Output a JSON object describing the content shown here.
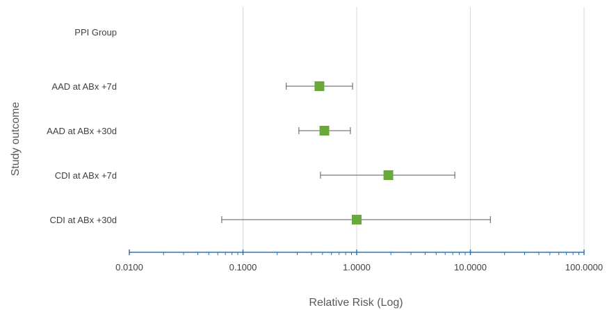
{
  "chart_data": {
    "type": "scatter",
    "subtype": "forest-plot",
    "title": "",
    "xlabel": "Relative Risk (Log)",
    "ylabel": "Study outcome",
    "xscale": "log",
    "xlim": [
      0.01,
      100
    ],
    "x_tick_values": [
      0.01,
      0.1,
      1,
      10,
      100
    ],
    "x_tick_labels": [
      "0.0100",
      "0.1000",
      "1.0000",
      "10.0000",
      "100.0000"
    ],
    "grid": "vertical major gridlines",
    "legend": "none",
    "categories": [
      "PPI Group",
      "AAD at ABx +7d",
      "AAD at ABx +30d",
      "CDI at ABx +7d",
      "CDI at ABx +30d"
    ],
    "points": [
      {
        "category": "PPI Group",
        "value": null,
        "lower": null,
        "upper": null
      },
      {
        "category": "AAD at ABx +7d",
        "value": 0.47,
        "lower": 0.24,
        "upper": 0.92
      },
      {
        "category": "AAD at ABx +30d",
        "value": 0.52,
        "lower": 0.31,
        "upper": 0.88
      },
      {
        "category": "CDI at ABx +7d",
        "value": 1.9,
        "lower": 0.48,
        "upper": 7.3
      },
      {
        "category": "CDI at ABx +30d",
        "value": 1.0,
        "lower": 0.065,
        "upper": 15.0
      }
    ],
    "colors": {
      "marker": "#6aaa3a",
      "error_bar": "#595959",
      "axis": "#2e75b6",
      "gridline": "#d9d9d9"
    }
  }
}
